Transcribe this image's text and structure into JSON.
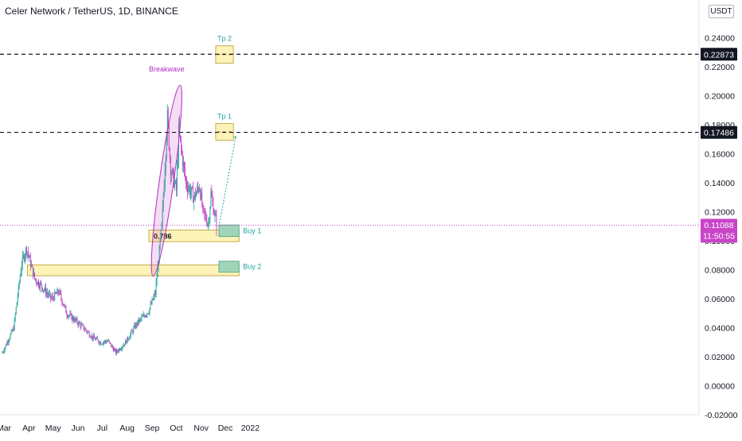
{
  "header": {
    "title": "Celer Network / TetherUS, 1D, BINANCE",
    "currency_button": "USDT"
  },
  "colors": {
    "up": "#26a69a",
    "down": "#c844c8",
    "zone_fill": "#fdf3b8",
    "zone_stroke": "#b59b2c",
    "buy_fill": "#9fd6b9",
    "buy_stroke": "#4a9e79",
    "annotation_teal": "#22a39b",
    "annotation_purple": "#b02ec0",
    "price_line": "#c844c8"
  },
  "chart_data": {
    "type": "candlestick",
    "title": "Celer Network / TetherUS, 1D, BINANCE",
    "ylim": [
      -0.02,
      0.26
    ],
    "grid": false,
    "x_labels": [
      "Mar",
      "Apr",
      "May",
      "Jun",
      "Jul",
      "Aug",
      "Sep",
      "Oct",
      "Nov",
      "Dec",
      "2022"
    ],
    "y_ticks": [
      "0.24000",
      "0.22000",
      "0.20000",
      "0.18000",
      "0.16000",
      "0.14000",
      "0.12000",
      "0.10000",
      "0.08000",
      "0.06000",
      "0.04000",
      "0.02000",
      "0.00000",
      "-0.02000"
    ],
    "y_tick_values": [
      0.24,
      0.22,
      0.2,
      0.18,
      0.16,
      0.14,
      0.12,
      0.1,
      0.08,
      0.06,
      0.04,
      0.02,
      0.0,
      -0.02
    ],
    "price_path": [
      [
        "2021-03-01",
        0.023
      ],
      [
        "2021-03-15",
        0.04
      ],
      [
        "2021-03-25",
        0.085
      ],
      [
        "2021-03-31",
        0.095
      ],
      [
        "2021-04-10",
        0.074
      ],
      [
        "2021-04-20",
        0.068
      ],
      [
        "2021-05-01",
        0.06
      ],
      [
        "2021-05-10",
        0.065
      ],
      [
        "2021-05-20",
        0.05
      ],
      [
        "2021-05-31",
        0.045
      ],
      [
        "2021-06-10",
        0.04
      ],
      [
        "2021-06-22",
        0.033
      ],
      [
        "2021-07-01",
        0.03
      ],
      [
        "2021-07-10",
        0.031
      ],
      [
        "2021-07-20",
        0.023
      ],
      [
        "2021-08-01",
        0.03
      ],
      [
        "2021-08-15",
        0.043
      ],
      [
        "2021-08-30",
        0.052
      ],
      [
        "2021-09-07",
        0.064
      ],
      [
        "2021-09-15",
        0.11
      ],
      [
        "2021-09-22",
        0.185
      ],
      [
        "2021-09-26",
        0.15
      ],
      [
        "2021-10-03",
        0.135
      ],
      [
        "2021-10-06",
        0.175
      ],
      [
        "2021-10-15",
        0.14
      ],
      [
        "2021-10-25",
        0.13
      ],
      [
        "2021-11-01",
        0.138
      ],
      [
        "2021-11-05",
        0.12
      ],
      [
        "2021-11-12",
        0.112
      ],
      [
        "2021-11-15",
        0.132
      ],
      [
        "2021-11-22",
        0.111
      ]
    ],
    "current_price": "0.11088",
    "countdown": "11:50:55",
    "levels": [
      {
        "label": "0.22873",
        "value": 0.22873
      },
      {
        "label": "0.17486",
        "value": 0.17486
      }
    ],
    "zones": [
      {
        "label": "Tp 2",
        "from_date": "2021-11-21",
        "to_date": "2021-12-13",
        "low": 0.2225,
        "high": 0.2345
      },
      {
        "label": "Tp 1",
        "from_date": "2021-11-21",
        "to_date": "2021-12-13",
        "low": 0.1695,
        "high": 0.181
      },
      {
        "label": "0.786",
        "from_date": "2021-08-30",
        "to_date": "2021-12-20",
        "low": 0.0995,
        "high": 0.1075
      },
      {
        "label": "",
        "from_date": "2021-04-01",
        "to_date": "2021-12-20",
        "low": 0.076,
        "high": 0.0835
      }
    ],
    "buy_zones": [
      {
        "label": "Buy 1",
        "from_date": "2021-11-25",
        "to_date": "2021-12-20",
        "low": 0.103,
        "high": 0.111
      },
      {
        "label": "Buy 2",
        "from_date": "2021-11-25",
        "to_date": "2021-12-20",
        "low": 0.0785,
        "high": 0.086
      }
    ],
    "annotations": [
      "Breakwave",
      "Tp 2",
      "Tp 1",
      "0.786",
      "Buy 1",
      "Buy 2"
    ]
  }
}
